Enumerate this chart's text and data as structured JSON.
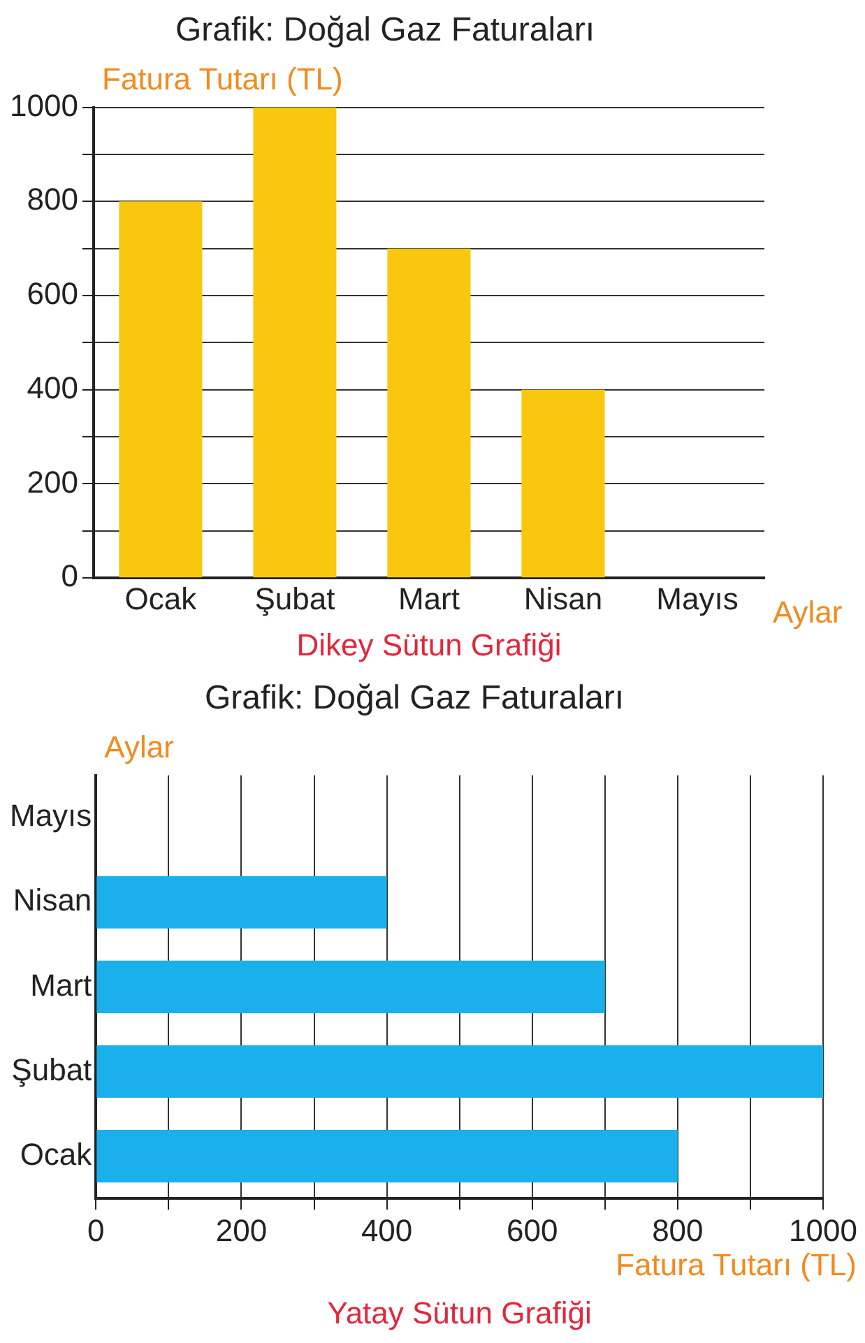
{
  "chart_data": [
    {
      "type": "bar",
      "title": "Grafik: Doğal Gaz Faturaları",
      "xlabel": "Aylar",
      "ylabel": "Fatura Tutarı (TL)",
      "annotations": [
        "Dikey Sütun Grafiği"
      ],
      "categories": [
        "Ocak",
        "Şubat",
        "Mart",
        "Nisan",
        "Mayıs"
      ],
      "values": [
        800,
        1000,
        700,
        400,
        null
      ],
      "color": "#f9c80e",
      "ylim": [
        0,
        1000
      ],
      "yticks": [
        0,
        {
          "value": 100,
          "label": null
        },
        200,
        {
          "value": 300,
          "label": null
        },
        400,
        {
          "value": 500,
          "label": null
        },
        600,
        {
          "value": 700,
          "label": null
        },
        800,
        {
          "value": 900,
          "label": null
        },
        1000
      ],
      "grid": "y"
    },
    {
      "type": "bar",
      "orientation": "horizontal",
      "title": "Grafik: Doğal Gaz Faturaları",
      "xlabel": "Fatura Tutarı (TL)",
      "ylabel": "Aylar",
      "annotations": [
        "Yatay Sütun Grafiği"
      ],
      "categories": [
        "Mayıs",
        "Nisan",
        "Mart",
        "Şubat",
        "Ocak"
      ],
      "values": [
        null,
        400,
        700,
        1000,
        800
      ],
      "color": "#1ab0ec",
      "xlim": [
        0,
        1000
      ],
      "xticks": [
        0,
        {
          "value": 100,
          "label": null
        },
        200,
        {
          "value": 300,
          "label": null
        },
        400,
        {
          "value": 500,
          "label": null
        },
        600,
        {
          "value": 700,
          "label": null
        },
        800,
        {
          "value": 900,
          "label": null
        },
        1000
      ],
      "grid": "x"
    }
  ]
}
